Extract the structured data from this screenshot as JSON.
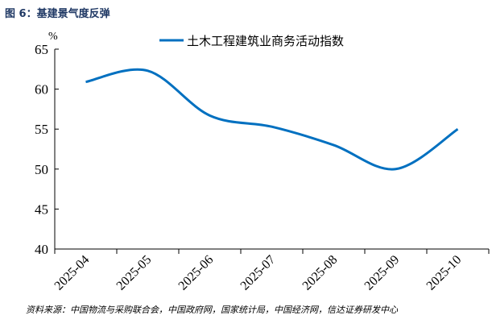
{
  "title": "图 6：基建景气度反弹",
  "source": "资料来源：中国物流与采购联合会，中国政府网，国家统计局，中国经济网，信达证券研发中心",
  "chart_data": {
    "type": "line",
    "title": "",
    "ylabel": "%",
    "xlabel": "",
    "categories": [
      "2025-04",
      "2025-05",
      "2025-06",
      "2025-07",
      "2025-08",
      "2025-09",
      "2025-10"
    ],
    "series": [
      {
        "name": "土木工程建筑业商务活动指数",
        "values": [
          60.9,
          62.3,
          56.7,
          55.3,
          53.0,
          50.0,
          55.0
        ],
        "color": "#0070c0"
      }
    ],
    "ylim": [
      40,
      65
    ],
    "yticks": [
      40,
      45,
      50,
      55,
      60,
      65
    ],
    "grid": false,
    "legend": "top"
  }
}
